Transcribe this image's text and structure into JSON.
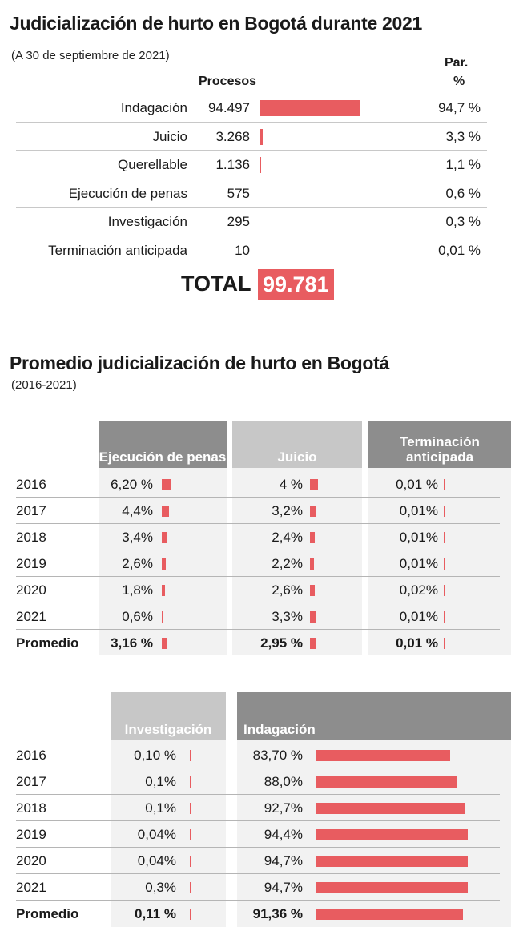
{
  "section1": {
    "title": "Judicialización de hurto en Bogotá durante 2021",
    "subtitle": "(A 30 de septiembre de 2021)",
    "col_procesos": "Procesos",
    "col_par_1": "Par.",
    "col_par_2": "%",
    "total_label": "TOTAL",
    "total_value": "99.781"
  },
  "section2": {
    "title": "Promedio judicialización de hurto en Bogotá",
    "subtitle": "(2016-2021)",
    "table1_headers": [
      "Ejecución de penas",
      "Juicio",
      "Terminación anticipada"
    ],
    "table2_headers": [
      "Investigación",
      "Indagación"
    ]
  },
  "colors": {
    "bar": "#e85c60",
    "dark_header": "#8d8d8d",
    "light_header": "#c7c7c7",
    "cell_bg": "#f2f2f2"
  },
  "chart_data": [
    {
      "type": "bar",
      "title": "Judicialización de hurto en Bogotá durante 2021",
      "subtitle": "(A 30 de septiembre de 2021)",
      "categories": [
        "Indagación",
        "Juicio",
        "Querellable",
        "Ejecución de penas",
        "Investigación",
        "Terminación anticipada"
      ],
      "values": [
        94497,
        3268,
        1136,
        575,
        295,
        10
      ],
      "value_labels": [
        "94.497",
        "3.268",
        "1.136",
        "575",
        "295",
        "10"
      ],
      "share_labels": [
        "94,7 %",
        "3,3 %",
        "1,1 %",
        "0,6 %",
        "0,3 %",
        "0,01 %"
      ],
      "total": 99781
    },
    {
      "type": "table",
      "title": "Promedio judicialización de hurto en Bogotá",
      "subtitle": "(2016-2021)",
      "rows": [
        "2016",
        "2017",
        "2018",
        "2019",
        "2020",
        "2021",
        "Promedio"
      ],
      "series": [
        {
          "name": "Ejecución de penas",
          "values": [
            6.2,
            4.4,
            3.4,
            2.6,
            1.8,
            0.6,
            3.16
          ],
          "labels": [
            "6,20 %",
            "4,4%",
            "3,4%",
            "2,6%",
            "1,8%",
            "0,6%",
            "3,16 %"
          ]
        },
        {
          "name": "Juicio",
          "values": [
            4,
            3.2,
            2.4,
            2.2,
            2.6,
            3.3,
            2.95
          ],
          "labels": [
            "4 %",
            "3,2%",
            "2,4%",
            "2,2%",
            "2,6%",
            "3,3%",
            "2,95 %"
          ]
        },
        {
          "name": "Terminación anticipada",
          "values": [
            0.01,
            0.01,
            0.01,
            0.01,
            0.02,
            0.01,
            0.01
          ],
          "labels": [
            "0,01 %",
            "0,01%",
            "0,01%",
            "0,01%",
            "0,02%",
            "0,01%",
            "0,01 %"
          ]
        },
        {
          "name": "Investigación",
          "values": [
            0.1,
            0.1,
            0.1,
            0.04,
            0.04,
            0.3,
            0.11
          ],
          "labels": [
            "0,10 %",
            "0,1%",
            "0,1%",
            "0,04%",
            "0,04%",
            "0,3%",
            "0,11 %"
          ]
        },
        {
          "name": "Indagación",
          "values": [
            83.7,
            88.0,
            92.7,
            94.4,
            94.7,
            94.7,
            91.36
          ],
          "labels": [
            "83,70 %",
            "88,0%",
            "92,7%",
            "94,4%",
            "94,7%",
            "94,7%",
            "91,36 %"
          ]
        }
      ]
    }
  ]
}
